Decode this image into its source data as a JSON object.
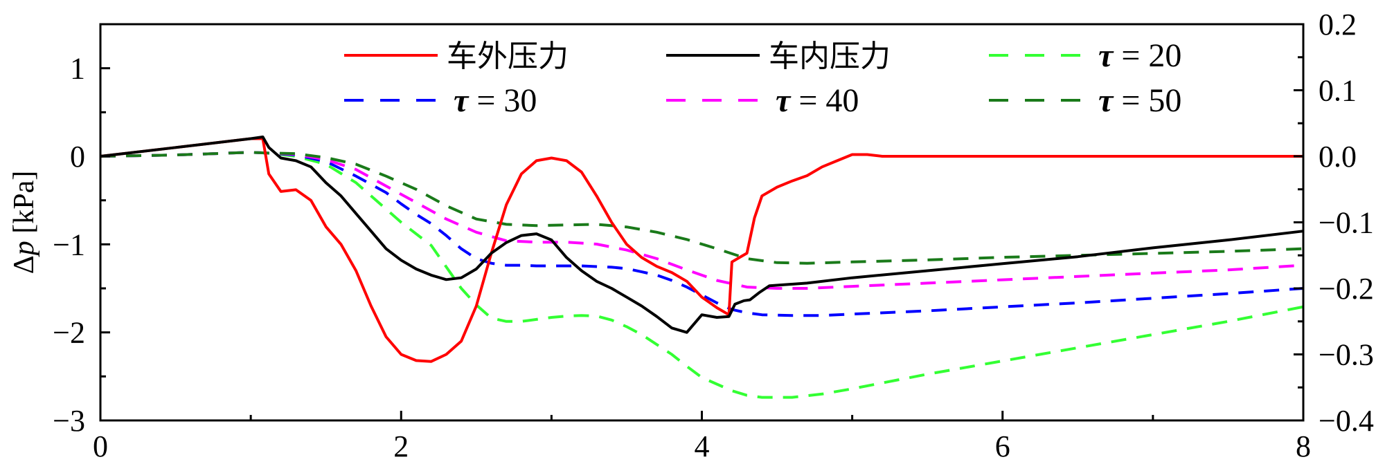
{
  "chart_data": {
    "type": "line",
    "title": "",
    "xlabel": "",
    "ylabel_prefix": "Δ",
    "ylabel_var": "p",
    "ylabel_unit": " [kPa]",
    "ylabel": "Δp [kPa]",
    "y2label": "",
    "xlim": [
      0,
      8
    ],
    "ylim": [
      -3,
      1.5
    ],
    "y2lim": [
      -0.4,
      0.2
    ],
    "x_ticks": [
      0,
      2,
      4,
      6,
      8
    ],
    "x_tick_labels": [
      "0",
      "2",
      "4",
      "6",
      "8"
    ],
    "x_minor_ticks": [
      1,
      3,
      5,
      7
    ],
    "y_ticks": [
      -3,
      -2,
      -1,
      0,
      1
    ],
    "y_tick_labels": [
      "−3",
      "−2",
      "−1",
      "0",
      "1"
    ],
    "y2_ticks": [
      -0.4,
      -0.3,
      -0.2,
      -0.1,
      0.0,
      0.1,
      0.2
    ],
    "y2_tick_labels": [
      "−0.4",
      "−0.3",
      "−0.2",
      "−0.1",
      "0.0",
      "0.1",
      "0.2"
    ],
    "legend_position": "top",
    "series": [
      {
        "name": "车外压力",
        "axis": "left",
        "color": "#ff0000",
        "style": "solid",
        "x": [
          0,
          0.5,
          1.0,
          1.08,
          1.12,
          1.2,
          1.3,
          1.4,
          1.5,
          1.6,
          1.7,
          1.8,
          1.9,
          2.0,
          2.1,
          2.2,
          2.3,
          2.4,
          2.5,
          2.6,
          2.7,
          2.8,
          2.9,
          3.0,
          3.1,
          3.2,
          3.3,
          3.4,
          3.5,
          3.6,
          3.7,
          3.8,
          3.9,
          4.0,
          4.1,
          4.18,
          4.2,
          4.25,
          4.3,
          4.35,
          4.4,
          4.5,
          4.6,
          4.7,
          4.8,
          4.9,
          5.0,
          5.1,
          5.2,
          6.0,
          7.0,
          8.0
        ],
        "y": [
          0,
          0.1,
          0.2,
          0.2,
          -0.2,
          -0.4,
          -0.38,
          -0.5,
          -0.8,
          -1.0,
          -1.3,
          -1.7,
          -2.05,
          -2.25,
          -2.32,
          -2.33,
          -2.25,
          -2.1,
          -1.7,
          -1.1,
          -0.55,
          -0.2,
          -0.05,
          -0.02,
          -0.05,
          -0.18,
          -0.45,
          -0.75,
          -1.0,
          -1.15,
          -1.25,
          -1.32,
          -1.42,
          -1.6,
          -1.72,
          -1.8,
          -1.2,
          -1.15,
          -1.1,
          -0.7,
          -0.45,
          -0.35,
          -0.28,
          -0.22,
          -0.12,
          -0.05,
          0.02,
          0.02,
          0,
          0,
          0,
          0
        ]
      },
      {
        "name": "车内压力",
        "axis": "left",
        "color": "#000000",
        "style": "solid",
        "x": [
          0,
          0.5,
          1.0,
          1.08,
          1.12,
          1.2,
          1.3,
          1.4,
          1.5,
          1.6,
          1.7,
          1.8,
          1.9,
          2.0,
          2.1,
          2.2,
          2.3,
          2.4,
          2.5,
          2.6,
          2.7,
          2.8,
          2.9,
          3.0,
          3.1,
          3.2,
          3.3,
          3.4,
          3.5,
          3.6,
          3.7,
          3.8,
          3.9,
          4.0,
          4.1,
          4.18,
          4.22,
          4.28,
          4.32,
          4.38,
          4.45,
          4.7,
          5.0,
          5.5,
          6.0,
          6.5,
          7.0,
          7.5,
          8.0
        ],
        "y": [
          0,
          0.1,
          0.2,
          0.22,
          0.1,
          -0.02,
          -0.05,
          -0.12,
          -0.3,
          -0.45,
          -0.65,
          -0.85,
          -1.05,
          -1.18,
          -1.28,
          -1.35,
          -1.4,
          -1.38,
          -1.28,
          -1.1,
          -0.98,
          -0.9,
          -0.88,
          -0.95,
          -1.15,
          -1.3,
          -1.42,
          -1.5,
          -1.6,
          -1.7,
          -1.82,
          -1.95,
          -2.0,
          -1.8,
          -1.83,
          -1.82,
          -1.68,
          -1.64,
          -1.63,
          -1.55,
          -1.47,
          -1.44,
          -1.38,
          -1.3,
          -1.22,
          -1.14,
          -1.04,
          -0.95,
          -0.85
        ]
      },
      {
        "name": "τ = 20",
        "label_tau": "τ",
        "label_eq": " = 20",
        "axis": "right",
        "color": "#33ff33",
        "style": "dashed",
        "x": [
          0,
          0.5,
          1.0,
          1.1,
          1.3,
          1.5,
          1.7,
          1.8,
          2.0,
          2.2,
          2.4,
          2.5,
          2.6,
          2.7,
          2.8,
          2.9,
          3.0,
          3.1,
          3.2,
          3.3,
          3.4,
          3.5,
          3.6,
          3.7,
          3.8,
          3.9,
          4.0,
          4.1,
          4.2,
          4.3,
          4.4,
          4.6,
          4.8,
          5.0,
          5.5,
          6.0,
          6.5,
          7.0,
          7.5,
          8.0
        ],
        "y": [
          0,
          0.002,
          0.006,
          0.005,
          0.0,
          -0.012,
          -0.04,
          -0.06,
          -0.1,
          -0.135,
          -0.2,
          -0.225,
          -0.245,
          -0.25,
          -0.25,
          -0.247,
          -0.244,
          -0.242,
          -0.241,
          -0.242,
          -0.248,
          -0.258,
          -0.27,
          -0.285,
          -0.3,
          -0.318,
          -0.335,
          -0.345,
          -0.355,
          -0.362,
          -0.365,
          -0.365,
          -0.36,
          -0.352,
          -0.33,
          -0.31,
          -0.29,
          -0.27,
          -0.25,
          -0.228
        ]
      },
      {
        "name": "τ = 30",
        "label_tau": "τ",
        "label_eq": " = 30",
        "axis": "right",
        "color": "#0000ff",
        "style": "dashed",
        "x": [
          0,
          0.5,
          1.0,
          1.1,
          1.3,
          1.5,
          1.7,
          1.9,
          2.0,
          2.1,
          2.2,
          2.3,
          2.4,
          2.5,
          2.6,
          2.7,
          2.8,
          2.9,
          3.0,
          3.1,
          3.2,
          3.3,
          3.4,
          3.5,
          3.6,
          3.7,
          3.8,
          3.9,
          4.0,
          4.1,
          4.2,
          4.3,
          4.4,
          4.6,
          4.8,
          5.0,
          5.5,
          6.0,
          6.5,
          7.0,
          7.5,
          8.0
        ],
        "y": [
          0,
          0.002,
          0.006,
          0.005,
          0.002,
          -0.008,
          -0.03,
          -0.055,
          -0.072,
          -0.088,
          -0.102,
          -0.12,
          -0.14,
          -0.155,
          -0.162,
          -0.165,
          -0.165,
          -0.166,
          -0.166,
          -0.166,
          -0.166,
          -0.167,
          -0.168,
          -0.17,
          -0.175,
          -0.18,
          -0.188,
          -0.198,
          -0.21,
          -0.222,
          -0.232,
          -0.237,
          -0.24,
          -0.241,
          -0.241,
          -0.239,
          -0.234,
          -0.228,
          -0.222,
          -0.215,
          -0.208,
          -0.2
        ]
      },
      {
        "name": "τ = 40",
        "label_tau": "τ",
        "label_eq": " = 40",
        "axis": "right",
        "color": "#ff00ff",
        "style": "dashed",
        "x": [
          0,
          0.5,
          1.0,
          1.1,
          1.3,
          1.5,
          1.7,
          1.9,
          2.1,
          2.3,
          2.5,
          2.7,
          2.9,
          3.1,
          3.3,
          3.5,
          3.7,
          3.9,
          4.1,
          4.3,
          4.5,
          4.7,
          5.0,
          5.5,
          6.0,
          6.5,
          7.0,
          7.5,
          8.0
        ],
        "y": [
          0,
          0.002,
          0.006,
          0.005,
          0.003,
          -0.005,
          -0.02,
          -0.045,
          -0.07,
          -0.095,
          -0.115,
          -0.128,
          -0.13,
          -0.13,
          -0.133,
          -0.142,
          -0.155,
          -0.172,
          -0.188,
          -0.198,
          -0.2,
          -0.2,
          -0.197,
          -0.192,
          -0.187,
          -0.182,
          -0.177,
          -0.172,
          -0.165
        ]
      },
      {
        "name": "τ = 50",
        "label_tau": "τ",
        "label_eq": " = 50",
        "axis": "right",
        "color": "#1a7a1a",
        "style": "dashed",
        "x": [
          0,
          0.5,
          1.0,
          1.1,
          1.3,
          1.5,
          1.7,
          1.9,
          2.1,
          2.3,
          2.5,
          2.7,
          2.9,
          3.1,
          3.3,
          3.5,
          3.7,
          3.9,
          4.1,
          4.3,
          4.5,
          4.7,
          5.0,
          5.5,
          6.0,
          6.5,
          7.0,
          7.5,
          8.0
        ],
        "y": [
          0,
          0.002,
          0.006,
          0.005,
          0.004,
          -0.002,
          -0.012,
          -0.03,
          -0.05,
          -0.075,
          -0.095,
          -0.103,
          -0.105,
          -0.104,
          -0.103,
          -0.107,
          -0.115,
          -0.126,
          -0.14,
          -0.155,
          -0.161,
          -0.162,
          -0.16,
          -0.157,
          -0.153,
          -0.15,
          -0.147,
          -0.144,
          -0.14
        ]
      }
    ]
  }
}
